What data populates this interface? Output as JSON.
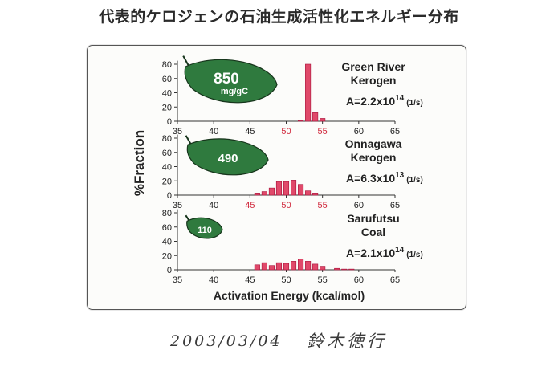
{
  "title": "代表的ケロジェンの石油生成活性化エネルギー分布",
  "footer": {
    "date": "2003/03/04",
    "author": "鈴木徳行"
  },
  "colors": {
    "bar": "#e0496a",
    "bar_edge": "#a8123a",
    "leaf": "#2f7a3e",
    "leaf_edge": "#17351c",
    "highlight_tick": "#d0283c"
  },
  "chart_data": {
    "type": "bar",
    "ylabel": "%Fraction",
    "xlabel": "Activation Energy (kcal/mol)",
    "xlim": [
      35,
      65
    ],
    "x_ticks": [
      35,
      40,
      45,
      50,
      55,
      60,
      65
    ],
    "y_ticks": [
      0,
      20,
      40,
      60,
      80
    ],
    "ylim": [
      0,
      85
    ],
    "grid": false,
    "panels": [
      {
        "name_lines": [
          "Green River",
          "Kerogen"
        ],
        "a_base": "A=2.2x10",
        "a_exp": "14",
        "a_unit": "(1/s)",
        "leaf_value": "850",
        "leaf_unit": "mg/gC",
        "red_ticks": [
          50,
          55
        ],
        "bars": [
          {
            "x": 52,
            "y": 1
          },
          {
            "x": 53,
            "y": 80
          },
          {
            "x": 54,
            "y": 12
          },
          {
            "x": 55,
            "y": 4
          }
        ]
      },
      {
        "name_lines": [
          "Onnagawa",
          "Kerogen"
        ],
        "a_base": "A=6.3x10",
        "a_exp": "13",
        "a_unit": "(1/s)",
        "leaf_value": "490",
        "leaf_unit": "",
        "red_ticks": [
          45,
          50,
          55
        ],
        "bars": [
          {
            "x": 46,
            "y": 3
          },
          {
            "x": 47,
            "y": 5
          },
          {
            "x": 48,
            "y": 10
          },
          {
            "x": 49,
            "y": 19
          },
          {
            "x": 50,
            "y": 19
          },
          {
            "x": 51,
            "y": 21
          },
          {
            "x": 52,
            "y": 15
          },
          {
            "x": 53,
            "y": 6
          },
          {
            "x": 54,
            "y": 3
          }
        ]
      },
      {
        "name_lines": [
          "Sarufutsu",
          "Coal"
        ],
        "a_base": "A=2.1x10",
        "a_exp": "14",
        "a_unit": "(1/s)",
        "leaf_value": "110",
        "leaf_unit": "",
        "red_ticks": [],
        "bars": [
          {
            "x": 46,
            "y": 7
          },
          {
            "x": 47,
            "y": 10
          },
          {
            "x": 48,
            "y": 6
          },
          {
            "x": 49,
            "y": 10
          },
          {
            "x": 50,
            "y": 9
          },
          {
            "x": 51,
            "y": 12
          },
          {
            "x": 52,
            "y": 15
          },
          {
            "x": 53,
            "y": 12
          },
          {
            "x": 54,
            "y": 8
          },
          {
            "x": 55,
            "y": 5
          },
          {
            "x": 57,
            "y": 2
          },
          {
            "x": 58,
            "y": 1
          },
          {
            "x": 59,
            "y": 1
          }
        ]
      }
    ]
  }
}
